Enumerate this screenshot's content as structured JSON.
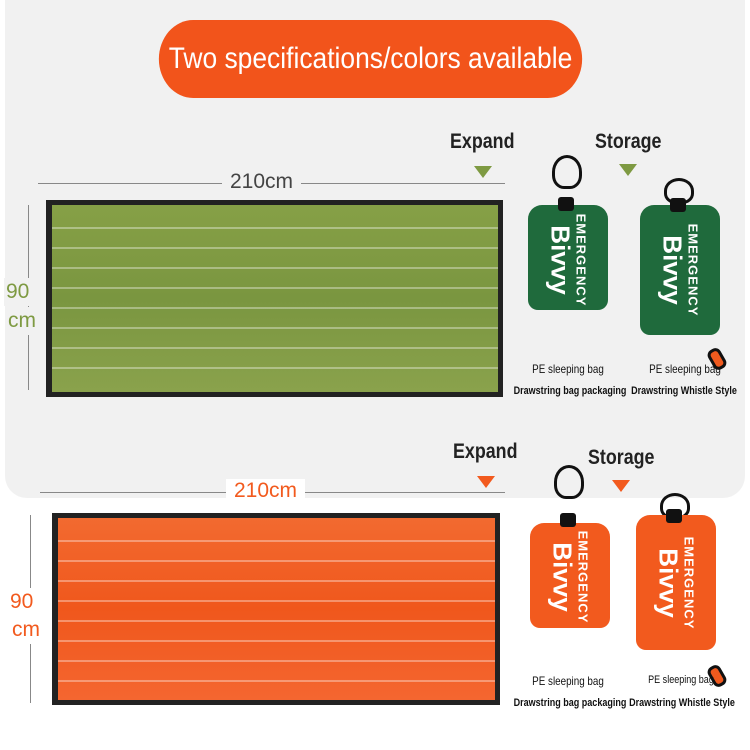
{
  "title": "Two specifications/colors available",
  "colors": {
    "accent": "#f2541b",
    "green_blanket": "#7e9a42",
    "green_pouch": "#1f6a3c",
    "orange": "#f25a1e"
  },
  "variants": [
    {
      "color": "green",
      "expand_label": "Expand",
      "storage_label": "Storage",
      "length": "210cm",
      "width_value": "90",
      "width_unit": "cm",
      "pouches": [
        {
          "print_top": "EMERGENCY",
          "print_main": "Bivvy",
          "caption": "PE sleeping bag",
          "subcaption": "Drawstring bag packaging"
        },
        {
          "print_top": "EMERGENCY",
          "print_main": "Bivvy",
          "caption": "PE sleeping bag",
          "subcaption": "Drawstring Whistle Style"
        }
      ]
    },
    {
      "color": "orange",
      "expand_label": "Expand",
      "storage_label": "Storage",
      "length": "210cm",
      "width_value": "90",
      "width_unit": "cm",
      "pouches": [
        {
          "print_top": "EMERGENCY",
          "print_main": "Bivvy",
          "caption": "PE sleeping bag",
          "subcaption": "Drawstring bag packaging"
        },
        {
          "print_top": "EMERGENCY",
          "print_main": "Bivvy",
          "caption": "PE sleeping bag",
          "subcaption": "Drawstring Whistle Style"
        }
      ]
    }
  ]
}
